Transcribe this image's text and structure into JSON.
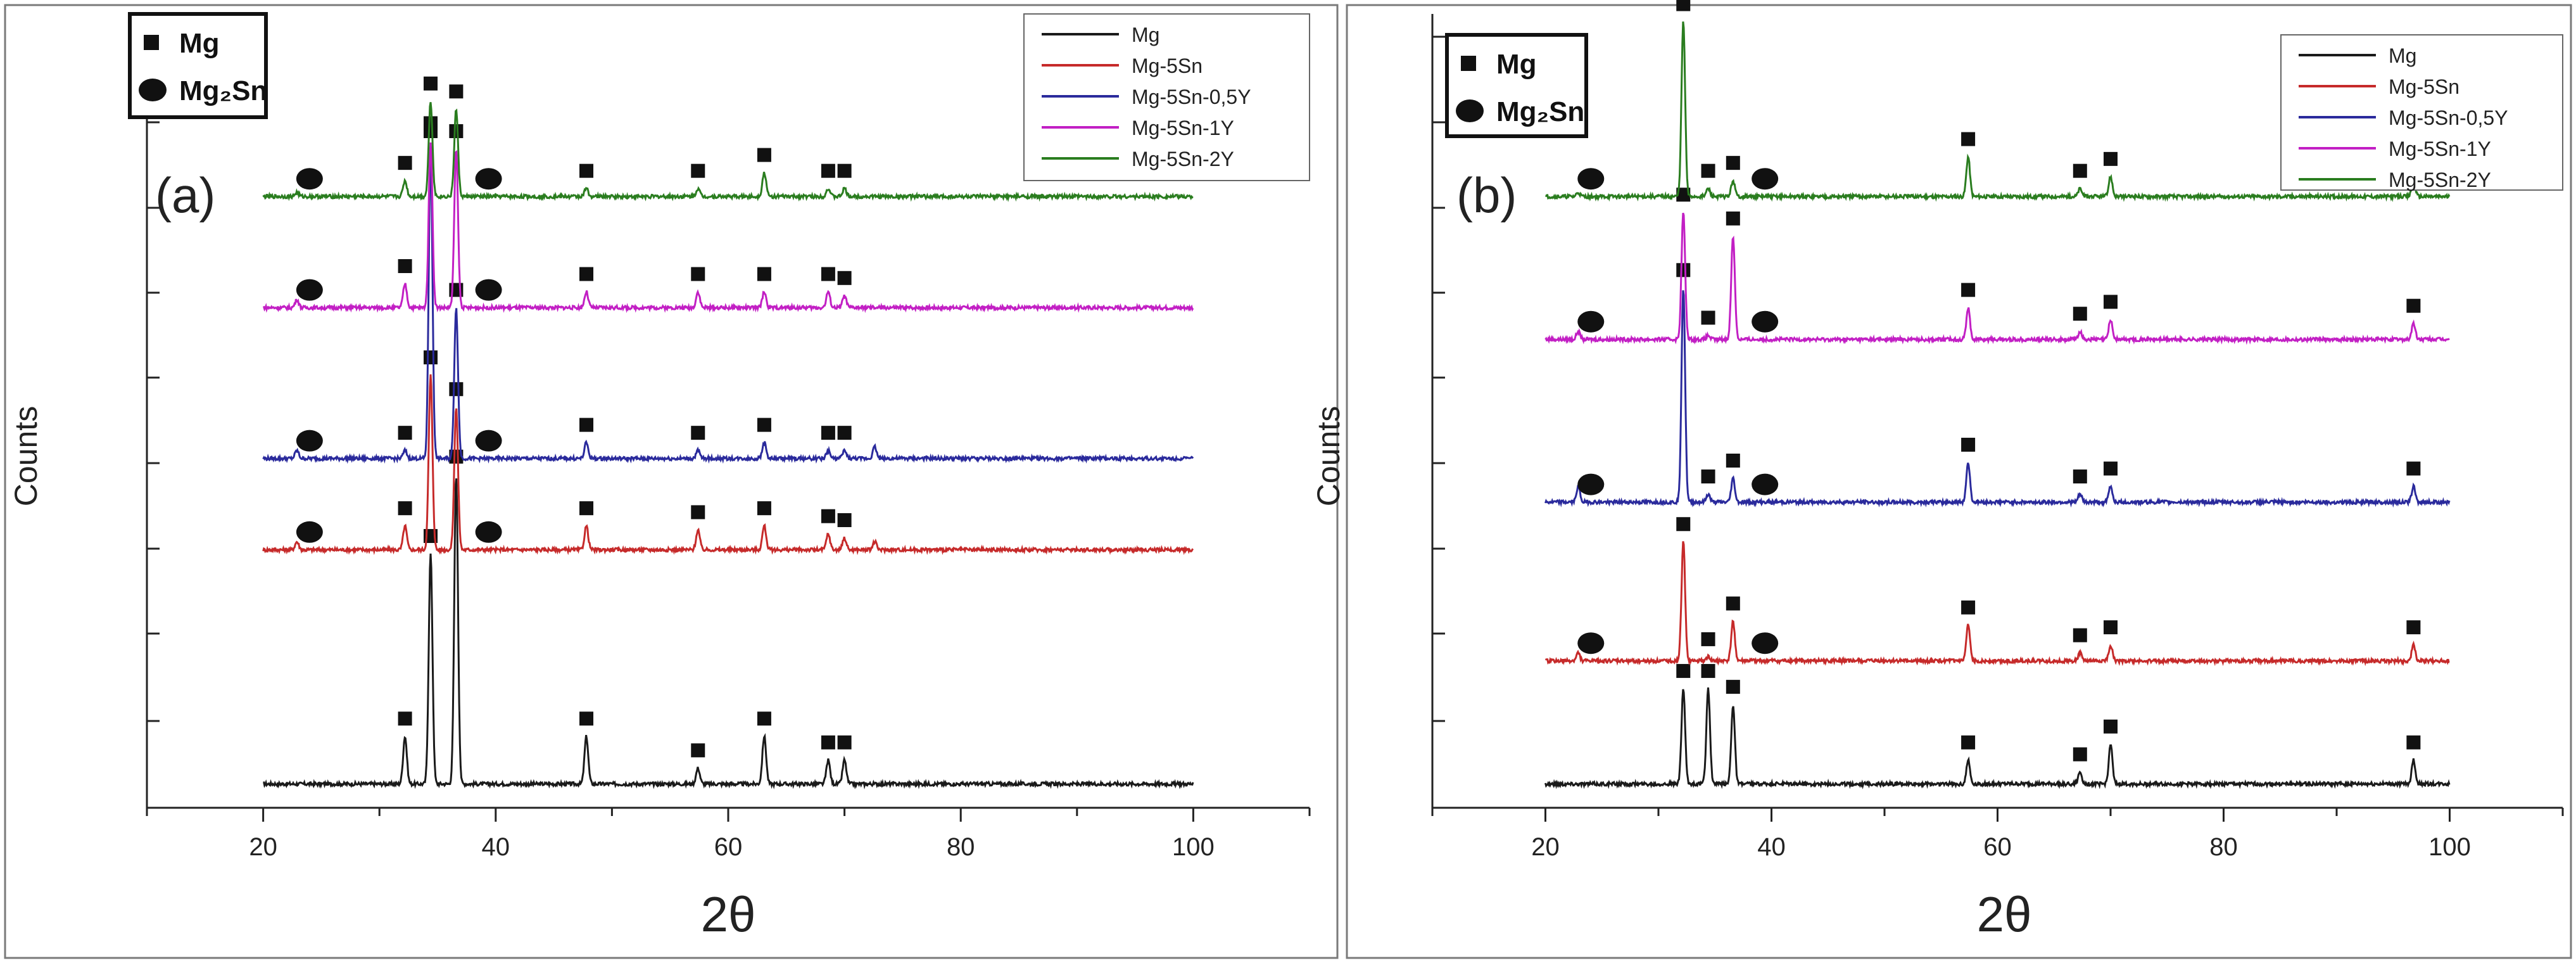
{
  "colors": {
    "Mg": "#1a1a1a",
    "Mg-5Sn": "#c62a2a",
    "Mg-5Sn-0,5Y": "#2a2a9c",
    "Mg-5Sn-1Y": "#c21fc4",
    "Mg-5Sn-2Y": "#2a7d1f",
    "axis": "#222222",
    "frame": "#7a7a7a"
  },
  "chart_data": [
    {
      "type": "line",
      "panel_label": "(a)",
      "xlabel": "2θ",
      "ylabel": "Counts",
      "xlim": [
        10,
        110
      ],
      "xticks": [
        20,
        40,
        60,
        80,
        100
      ],
      "phase_legend": [
        {
          "symbol": "square",
          "label": "Mg"
        },
        {
          "symbol": "circle",
          "label": "Mg₂Sn"
        }
      ],
      "legend": [
        "Mg",
        "Mg-5Sn",
        "Mg-5Sn-0,5Y",
        "Mg-5Sn-1Y",
        "Mg-5Sn-2Y"
      ],
      "series": [
        {
          "name": "Mg",
          "baseline": 0.03,
          "peaks": [
            [
              32.2,
              0.06
            ],
            [
              34.4,
              0.29
            ],
            [
              36.6,
              0.39
            ],
            [
              47.8,
              0.06
            ],
            [
              57.4,
              0.02
            ],
            [
              63.1,
              0.06
            ],
            [
              68.6,
              0.03
            ],
            [
              70.0,
              0.03
            ]
          ],
          "markers": [
            {
              "s": "square",
              "x": 32.2
            },
            {
              "s": "square",
              "x": 34.4
            },
            {
              "s": "square",
              "x": 36.6
            },
            {
              "s": "square",
              "x": 47.8
            },
            {
              "s": "square",
              "x": 57.4
            },
            {
              "s": "square",
              "x": 63.1
            },
            {
              "s": "square",
              "x": 68.6
            },
            {
              "s": "square",
              "x": 70.0
            }
          ]
        },
        {
          "name": "Mg-5Sn",
          "baseline": 0.325,
          "peaks": [
            [
              22.9,
              0.01
            ],
            [
              32.2,
              0.03
            ],
            [
              34.4,
              0.22
            ],
            [
              36.6,
              0.18
            ],
            [
              47.8,
              0.03
            ],
            [
              57.4,
              0.025
            ],
            [
              63.1,
              0.03
            ],
            [
              68.6,
              0.02
            ],
            [
              70.0,
              0.015
            ],
            [
              72.6,
              0.01
            ]
          ],
          "markers": [
            {
              "s": "circle",
              "x": 22.9
            },
            {
              "s": "square",
              "x": 32.2
            },
            {
              "s": "square",
              "x": 34.4
            },
            {
              "s": "square",
              "x": 36.6
            },
            {
              "s": "circle",
              "x": 38.3
            },
            {
              "s": "square",
              "x": 47.8
            },
            {
              "s": "square",
              "x": 57.4
            },
            {
              "s": "square",
              "x": 63.1
            },
            {
              "s": "square",
              "x": 68.6
            },
            {
              "s": "square",
              "x": 70.0
            }
          ]
        },
        {
          "name": "Mg-5Sn-0,5Y",
          "baseline": 0.44,
          "peaks": [
            [
              22.9,
              0.01
            ],
            [
              32.2,
              0.01
            ],
            [
              34.4,
              0.39
            ],
            [
              36.6,
              0.19
            ],
            [
              47.8,
              0.02
            ],
            [
              57.4,
              0.01
            ],
            [
              63.1,
              0.02
            ],
            [
              68.6,
              0.01
            ],
            [
              70.0,
              0.01
            ],
            [
              72.6,
              0.015
            ]
          ],
          "markers": [
            {
              "s": "circle",
              "x": 22.9
            },
            {
              "s": "square",
              "x": 32.2
            },
            {
              "s": "square",
              "x": 34.4
            },
            {
              "s": "square",
              "x": 36.6
            },
            {
              "s": "circle",
              "x": 38.3
            },
            {
              "s": "square",
              "x": 47.8
            },
            {
              "s": "square",
              "x": 57.4
            },
            {
              "s": "square",
              "x": 63.1
            },
            {
              "s": "square",
              "x": 68.6
            },
            {
              "s": "square",
              "x": 70.0
            }
          ]
        },
        {
          "name": "Mg-5Sn-1Y",
          "baseline": 0.63,
          "peaks": [
            [
              22.9,
              0.01
            ],
            [
              32.2,
              0.03
            ],
            [
              34.4,
              0.21
            ],
            [
              36.6,
              0.2
            ],
            [
              47.8,
              0.02
            ],
            [
              57.4,
              0.02
            ],
            [
              63.1,
              0.02
            ],
            [
              68.6,
              0.02
            ],
            [
              70.0,
              0.015
            ]
          ],
          "markers": [
            {
              "s": "circle",
              "x": 22.9
            },
            {
              "s": "square",
              "x": 32.2
            },
            {
              "s": "square",
              "x": 34.4
            },
            {
              "s": "square",
              "x": 36.6
            },
            {
              "s": "circle",
              "x": 38.3
            },
            {
              "s": "square",
              "x": 47.8
            },
            {
              "s": "square",
              "x": 57.4
            },
            {
              "s": "square",
              "x": 63.1
            },
            {
              "s": "square",
              "x": 68.6
            },
            {
              "s": "square",
              "x": 70.0
            }
          ]
        },
        {
          "name": "Mg-5Sn-2Y",
          "baseline": 0.77,
          "peaks": [
            [
              22.9,
              0.005
            ],
            [
              32.2,
              0.02
            ],
            [
              34.4,
              0.12
            ],
            [
              36.6,
              0.11
            ],
            [
              47.8,
              0.01
            ],
            [
              57.4,
              0.01
            ],
            [
              63.1,
              0.03
            ],
            [
              68.6,
              0.01
            ],
            [
              70.0,
              0.01
            ]
          ],
          "markers": [
            {
              "s": "circle",
              "x": 22.9
            },
            {
              "s": "square",
              "x": 32.2
            },
            {
              "s": "square",
              "x": 34.4
            },
            {
              "s": "square",
              "x": 36.6
            },
            {
              "s": "circle",
              "x": 38.3
            },
            {
              "s": "square",
              "x": 47.8
            },
            {
              "s": "square",
              "x": 57.4
            },
            {
              "s": "square",
              "x": 63.1
            },
            {
              "s": "square",
              "x": 68.6
            },
            {
              "s": "square",
              "x": 70.0
            }
          ]
        }
      ]
    },
    {
      "type": "line",
      "panel_label": "(b)",
      "xlabel": "2θ",
      "ylabel": "Counts",
      "xlim": [
        10,
        110
      ],
      "xticks": [
        20,
        40,
        60,
        80,
        100
      ],
      "phase_legend": [
        {
          "symbol": "square",
          "label": "Mg"
        },
        {
          "symbol": "circle",
          "label": "Mg₂Sn"
        }
      ],
      "legend": [
        "Mg",
        "Mg-5Sn",
        "Mg-5Sn-0,5Y",
        "Mg-5Sn-1Y",
        "Mg-5Sn-2Y"
      ],
      "series": [
        {
          "name": "Mg",
          "baseline": 0.03,
          "peaks": [
            [
              32.2,
              0.12
            ],
            [
              34.4,
              0.12
            ],
            [
              36.6,
              0.1
            ],
            [
              57.4,
              0.03
            ],
            [
              67.3,
              0.015
            ],
            [
              70.0,
              0.05
            ],
            [
              96.8,
              0.03
            ]
          ],
          "markers": [
            {
              "s": "square",
              "x": 32.2
            },
            {
              "s": "square",
              "x": 34.4
            },
            {
              "s": "square",
              "x": 36.6
            },
            {
              "s": "square",
              "x": 57.4
            },
            {
              "s": "square",
              "x": 67.3
            },
            {
              "s": "square",
              "x": 70.0
            },
            {
              "s": "square",
              "x": 96.8
            }
          ]
        },
        {
          "name": "Mg-5Sn",
          "baseline": 0.185,
          "peaks": [
            [
              22.9,
              0.01
            ],
            [
              32.2,
              0.15
            ],
            [
              34.4,
              0.005
            ],
            [
              36.6,
              0.05
            ],
            [
              57.4,
              0.045
            ],
            [
              67.3,
              0.01
            ],
            [
              70.0,
              0.02
            ],
            [
              96.8,
              0.02
            ]
          ],
          "markers": [
            {
              "s": "circle",
              "x": 22.9
            },
            {
              "s": "square",
              "x": 32.2
            },
            {
              "s": "square",
              "x": 34.4
            },
            {
              "s": "square",
              "x": 36.6
            },
            {
              "s": "circle",
              "x": 38.3
            },
            {
              "s": "square",
              "x": 57.4
            },
            {
              "s": "square",
              "x": 67.3
            },
            {
              "s": "square",
              "x": 70.0
            },
            {
              "s": "square",
              "x": 96.8
            }
          ]
        },
        {
          "name": "Mg-5Sn-0,5Y",
          "baseline": 0.385,
          "peaks": [
            [
              22.9,
              0.02
            ],
            [
              32.2,
              0.27
            ],
            [
              34.4,
              0.01
            ],
            [
              36.6,
              0.03
            ],
            [
              57.4,
              0.05
            ],
            [
              67.3,
              0.01
            ],
            [
              70.0,
              0.02
            ],
            [
              96.8,
              0.02
            ]
          ],
          "markers": [
            {
              "s": "circle",
              "x": 22.9
            },
            {
              "s": "square",
              "x": 32.2
            },
            {
              "s": "square",
              "x": 34.4
            },
            {
              "s": "square",
              "x": 36.6
            },
            {
              "s": "circle",
              "x": 38.3
            },
            {
              "s": "square",
              "x": 57.4
            },
            {
              "s": "square",
              "x": 67.3
            },
            {
              "s": "square",
              "x": 70.0
            },
            {
              "s": "square",
              "x": 96.8
            }
          ]
        },
        {
          "name": "Mg-5Sn-1Y",
          "baseline": 0.59,
          "peaks": [
            [
              22.9,
              0.01
            ],
            [
              32.2,
              0.16
            ],
            [
              34.4,
              0.005
            ],
            [
              36.6,
              0.13
            ],
            [
              57.4,
              0.04
            ],
            [
              67.3,
              0.01
            ],
            [
              70.0,
              0.025
            ],
            [
              96.8,
              0.02
            ]
          ],
          "markers": [
            {
              "s": "circle",
              "x": 22.9
            },
            {
              "s": "square",
              "x": 32.2
            },
            {
              "s": "square",
              "x": 34.4
            },
            {
              "s": "square",
              "x": 36.6
            },
            {
              "s": "circle",
              "x": 38.3
            },
            {
              "s": "square",
              "x": 57.4
            },
            {
              "s": "square",
              "x": 67.3
            },
            {
              "s": "square",
              "x": 70.0
            },
            {
              "s": "square",
              "x": 96.8
            }
          ]
        },
        {
          "name": "Mg-5Sn-2Y",
          "baseline": 0.77,
          "peaks": [
            [
              22.9,
              0.005
            ],
            [
              32.2,
              0.22
            ],
            [
              34.4,
              0.01
            ],
            [
              36.6,
              0.02
            ],
            [
              57.4,
              0.05
            ],
            [
              67.3,
              0.01
            ],
            [
              70.0,
              0.025
            ],
            [
              96.8,
              0.02
            ]
          ],
          "markers": [
            {
              "s": "circle",
              "x": 22.9
            },
            {
              "s": "square",
              "x": 32.2
            },
            {
              "s": "square",
              "x": 34.4
            },
            {
              "s": "square",
              "x": 36.6
            },
            {
              "s": "circle",
              "x": 38.3
            },
            {
              "s": "square",
              "x": 57.4
            },
            {
              "s": "square",
              "x": 67.3
            },
            {
              "s": "square",
              "x": 70.0
            },
            {
              "s": "square",
              "x": 96.8
            }
          ]
        }
      ]
    }
  ]
}
